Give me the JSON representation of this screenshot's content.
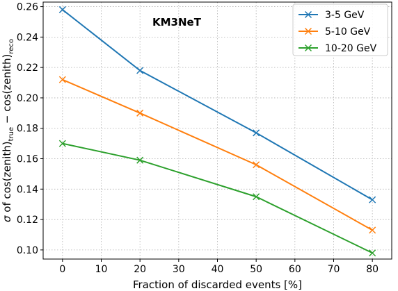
{
  "chart_data": {
    "type": "line",
    "annotation": "KM3NeT",
    "xlabel": "Fraction of discarded events [%]",
    "ylabel": {
      "prefix": "σ of cos(zenith)",
      "sub1": "true",
      "mid": " − cos(zenith)",
      "sub2": "reco"
    },
    "x": [
      0,
      20,
      50,
      80
    ],
    "xlim": [
      -5,
      85
    ],
    "ylim": [
      0.094,
      0.263
    ],
    "xticks": [
      0,
      10,
      20,
      30,
      40,
      50,
      60,
      70,
      80
    ],
    "yticks": [
      0.1,
      0.12,
      0.14,
      0.16,
      0.18,
      0.2,
      0.22,
      0.24,
      0.26
    ],
    "grid": true,
    "legend_position": "top-right",
    "marker": "x",
    "series": [
      {
        "name": "3-5 GeV",
        "color": "#1f77b4",
        "values": [
          0.258,
          0.218,
          0.177,
          0.133
        ]
      },
      {
        "name": "5-10 GeV",
        "color": "#ff7f0e",
        "values": [
          0.212,
          0.19,
          0.156,
          0.113
        ]
      },
      {
        "name": "10-20 GeV",
        "color": "#2ca02c",
        "values": [
          0.17,
          0.159,
          0.135,
          0.098
        ]
      }
    ]
  }
}
